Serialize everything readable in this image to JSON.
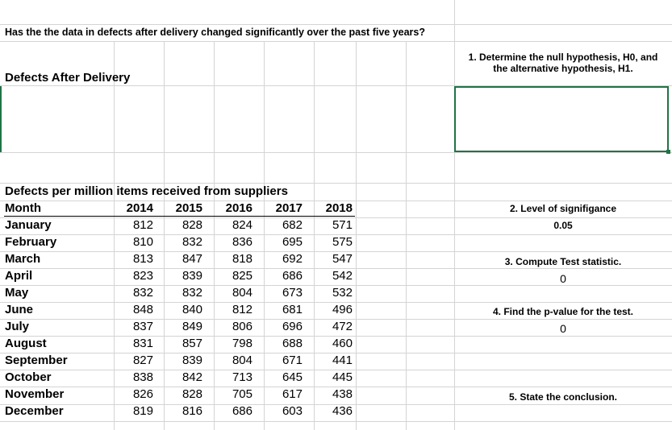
{
  "question": "Has the the data in defects after delivery changed significantly over the past five years?",
  "section_title": "Defects After Delivery",
  "table": {
    "title": "Defects per million items received from suppliers",
    "headers": [
      "Month",
      "2014",
      "2015",
      "2016",
      "2017",
      "2018"
    ],
    "rows": [
      {
        "month": "January",
        "values": [
          "812",
          "828",
          "824",
          "682",
          "571"
        ]
      },
      {
        "month": "February",
        "values": [
          "810",
          "832",
          "836",
          "695",
          "575"
        ]
      },
      {
        "month": "March",
        "values": [
          "813",
          "847",
          "818",
          "692",
          "547"
        ]
      },
      {
        "month": "April",
        "values": [
          "823",
          "839",
          "825",
          "686",
          "542"
        ]
      },
      {
        "month": "May",
        "values": [
          "832",
          "832",
          "804",
          "673",
          "532"
        ]
      },
      {
        "month": "June",
        "values": [
          "848",
          "840",
          "812",
          "681",
          "496"
        ]
      },
      {
        "month": "July",
        "values": [
          "837",
          "849",
          "806",
          "696",
          "472"
        ]
      },
      {
        "month": "August",
        "values": [
          "831",
          "857",
          "798",
          "688",
          "460"
        ]
      },
      {
        "month": "September",
        "values": [
          "827",
          "839",
          "804",
          "671",
          "441"
        ]
      },
      {
        "month": "October",
        "values": [
          "838",
          "842",
          "713",
          "645",
          "445"
        ]
      },
      {
        "month": "November",
        "values": [
          "826",
          "828",
          "705",
          "617",
          "438"
        ]
      },
      {
        "month": "December",
        "values": [
          "819",
          "816",
          "686",
          "603",
          "436"
        ]
      }
    ]
  },
  "steps": {
    "step1_line1": "1. Determine the null hypothesis, H0, and",
    "step1_line2": "the alternative hypothesis, H1.",
    "step2_label": "2. Level of signifigance",
    "step2_value": "0.05",
    "step3_label": "3. Compute Test statistic.",
    "step3_value": "0",
    "step4_label": "4. Find the p-value for the test.",
    "step4_value": "0",
    "step5_label": "5. State the conclusion."
  },
  "colors": {
    "gridline": "#d4d4d4",
    "selection": "#217346"
  }
}
